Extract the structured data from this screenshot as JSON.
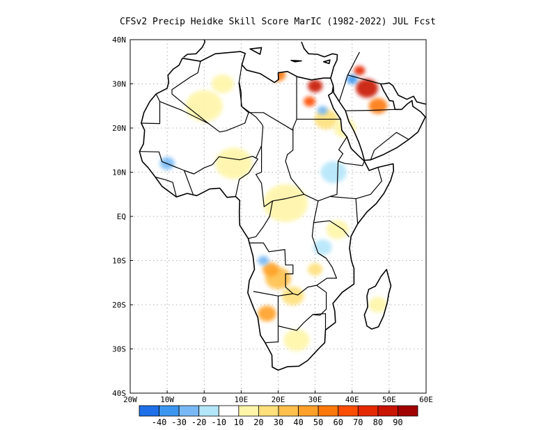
{
  "title": "CFSv2 Precip Heidke Skill Score MarIC (1982-2022) JUL Fcst",
  "map": {
    "lon_ticks": [
      {
        "value": -20,
        "label": "20W"
      },
      {
        "value": -10,
        "label": "10W"
      },
      {
        "value": 0,
        "label": "0"
      },
      {
        "value": 10,
        "label": "10E"
      },
      {
        "value": 20,
        "label": "20E"
      },
      {
        "value": 30,
        "label": "30E"
      },
      {
        "value": 40,
        "label": "40E"
      },
      {
        "value": 50,
        "label": "50E"
      },
      {
        "value": 60,
        "label": "60E"
      }
    ],
    "lat_ticks": [
      {
        "value": 40,
        "label": "40N"
      },
      {
        "value": 30,
        "label": "30N"
      },
      {
        "value": 20,
        "label": "20N"
      },
      {
        "value": 10,
        "label": "10N"
      },
      {
        "value": 0,
        "label": "EQ"
      },
      {
        "value": -10,
        "label": "10S"
      },
      {
        "value": -20,
        "label": "20S"
      },
      {
        "value": -30,
        "label": "30S"
      },
      {
        "value": -40,
        "label": "40S"
      }
    ],
    "lon_range": [
      -20,
      60
    ],
    "lat_range": [
      -40,
      40
    ],
    "grid": "dotted"
  },
  "colorbar": {
    "colors": [
      "#1e6fe8",
      "#3c96f0",
      "#78b9f5",
      "#b4e6fa",
      "#ffffff",
      "#fff5a8",
      "#ffe07c",
      "#ffc04c",
      "#ffa028",
      "#ff780a",
      "#ff4e00",
      "#e62800",
      "#c81400",
      "#a00000"
    ],
    "labels": [
      "-40",
      "-30",
      "-20",
      "-10",
      "10",
      "20",
      "30",
      "40",
      "50",
      "60",
      "70",
      "80",
      "90"
    ]
  },
  "skill_patches": [
    {
      "lon": 33,
      "lat": 22,
      "r": 3.2,
      "color": "#ffe07c"
    },
    {
      "lon": 20,
      "lat": -14,
      "r": 3.5,
      "color": "#ffc04c"
    },
    {
      "lon": 18,
      "lat": -12,
      "r": 2.2,
      "color": "#ffa028"
    },
    {
      "lon": 17,
      "lat": -22,
      "r": 2.5,
      "color": "#ffa028"
    },
    {
      "lon": 24,
      "lat": -18,
      "r": 3.0,
      "color": "#ffe07c"
    },
    {
      "lon": 22,
      "lat": 3,
      "r": 6.0,
      "color": "#fff5a8"
    },
    {
      "lon": 8,
      "lat": 12,
      "r": 5.0,
      "color": "#fff5a8"
    },
    {
      "lon": 0,
      "lat": 25,
      "r": 5.0,
      "color": "#fff5a8"
    },
    {
      "lon": 20,
      "lat": 32,
      "r": 2.0,
      "color": "#ff780a"
    },
    {
      "lon": 30,
      "lat": 29.5,
      "r": 2.0,
      "color": "#c81400"
    },
    {
      "lon": 28.5,
      "lat": 26,
      "r": 1.6,
      "color": "#ff4e00"
    },
    {
      "lon": 44,
      "lat": 29,
      "r": 3.0,
      "color": "#c81400"
    },
    {
      "lon": 47,
      "lat": 25,
      "r": 2.5,
      "color": "#ff780a"
    },
    {
      "lon": 42,
      "lat": 33,
      "r": 1.5,
      "color": "#e62800"
    },
    {
      "lon": 40,
      "lat": 31,
      "r": 1.5,
      "color": "#3c96f0"
    },
    {
      "lon": 32,
      "lat": 24,
      "r": 1.4,
      "color": "#78b9f5"
    },
    {
      "lon": 35,
      "lat": 10,
      "r": 3.5,
      "color": "#b4e6fa"
    },
    {
      "lon": 32,
      "lat": -7,
      "r": 2.5,
      "color": "#b4e6fa"
    },
    {
      "lon": -10,
      "lat": 12,
      "r": 2.0,
      "color": "#78b9f5"
    },
    {
      "lon": 36,
      "lat": -3,
      "r": 3.0,
      "color": "#fff5a8"
    },
    {
      "lon": 16,
      "lat": -10,
      "r": 1.5,
      "color": "#78b9f5"
    },
    {
      "lon": 47,
      "lat": -20,
      "r": 2.5,
      "color": "#fff5a8"
    },
    {
      "lon": 30,
      "lat": -12,
      "r": 2.0,
      "color": "#ffe07c"
    },
    {
      "lon": 25,
      "lat": -28,
      "r": 3.5,
      "color": "#fff5a8"
    },
    {
      "lon": 5,
      "lat": 30,
      "r": 3.0,
      "color": "#fff5a8"
    },
    {
      "lon": 38,
      "lat": 20,
      "r": 3.0,
      "color": "#fff5a8"
    }
  ]
}
